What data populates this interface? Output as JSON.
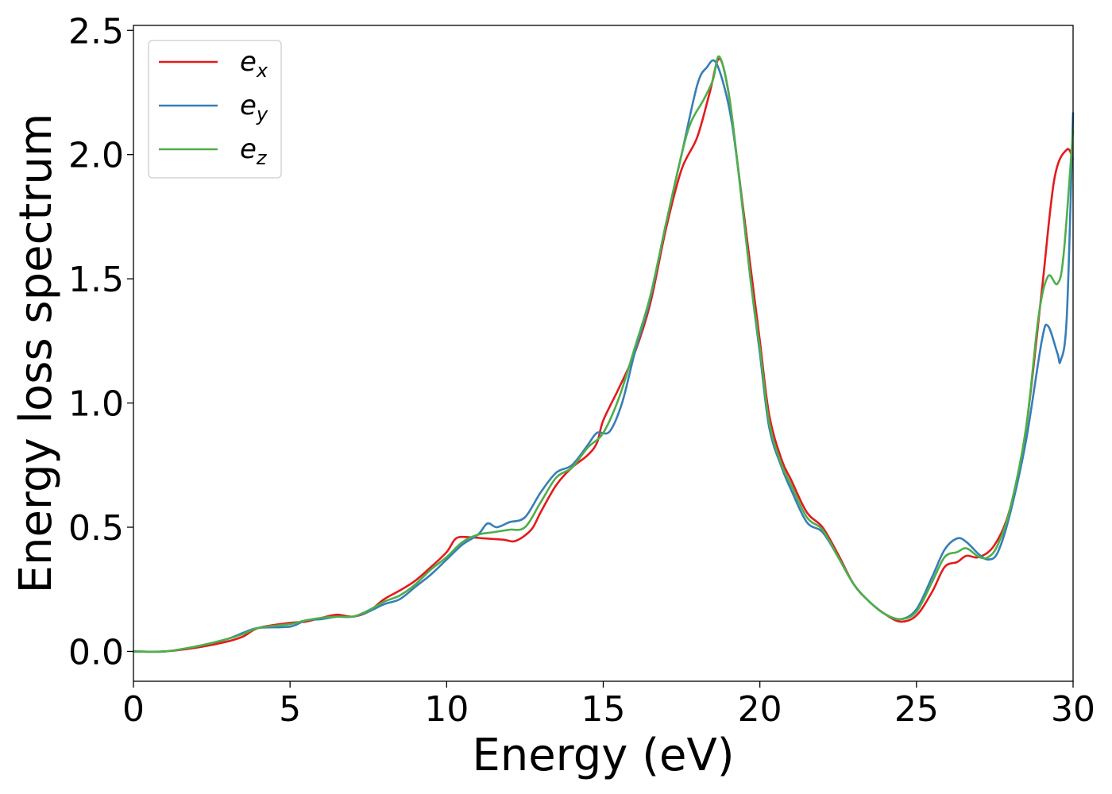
{
  "chart_data": {
    "type": "line",
    "title": "",
    "xlabel": "Energy (eV)",
    "ylabel": "Energy loss spectrum",
    "xlim": [
      0,
      30
    ],
    "ylim": [
      -0.12,
      2.52
    ],
    "xticks": [
      0,
      5,
      10,
      15,
      20,
      25,
      30
    ],
    "xtick_labels": [
      "0",
      "5",
      "10",
      "15",
      "20",
      "25",
      "30"
    ],
    "yticks": [
      0.0,
      0.5,
      1.0,
      1.5,
      2.0,
      2.5
    ],
    "ytick_labels": [
      "0.0",
      "0.5",
      "1.0",
      "1.5",
      "2.0",
      "2.5"
    ],
    "grid": false,
    "legend_position": "top-left",
    "series": [
      {
        "name": "e",
        "sub": "x",
        "color": "#e41a1c",
        "points": [
          [
            0,
            0
          ],
          [
            1,
            0.0
          ],
          [
            2,
            0.015
          ],
          [
            3,
            0.04
          ],
          [
            3.5,
            0.06
          ],
          [
            4,
            0.095
          ],
          [
            5,
            0.115
          ],
          [
            5.5,
            0.12
          ],
          [
            6,
            0.135
          ],
          [
            6.5,
            0.148
          ],
          [
            7,
            0.14
          ],
          [
            7.5,
            0.16
          ],
          [
            8,
            0.21
          ],
          [
            8.5,
            0.245
          ],
          [
            9,
            0.285
          ],
          [
            9.5,
            0.34
          ],
          [
            10,
            0.4
          ],
          [
            10.3,
            0.455
          ],
          [
            10.7,
            0.46
          ],
          [
            11.2,
            0.455
          ],
          [
            11.8,
            0.45
          ],
          [
            12.2,
            0.445
          ],
          [
            12.7,
            0.49
          ],
          [
            13,
            0.56
          ],
          [
            13.5,
            0.67
          ],
          [
            14,
            0.74
          ],
          [
            14.5,
            0.79
          ],
          [
            14.8,
            0.84
          ],
          [
            15,
            0.93
          ],
          [
            15.5,
            1.06
          ],
          [
            16,
            1.2
          ],
          [
            16.5,
            1.4
          ],
          [
            17,
            1.7
          ],
          [
            17.5,
            1.94
          ],
          [
            18,
            2.07
          ],
          [
            18.4,
            2.25
          ],
          [
            18.7,
            2.385
          ],
          [
            19,
            2.25
          ],
          [
            19.3,
            1.95
          ],
          [
            19.7,
            1.55
          ],
          [
            20,
            1.25
          ],
          [
            20.3,
            0.95
          ],
          [
            20.7,
            0.77
          ],
          [
            21,
            0.69
          ],
          [
            21.5,
            0.56
          ],
          [
            22,
            0.5
          ],
          [
            22.5,
            0.39
          ],
          [
            23,
            0.27
          ],
          [
            23.5,
            0.2
          ],
          [
            24,
            0.15
          ],
          [
            24.5,
            0.12
          ],
          [
            25,
            0.145
          ],
          [
            25.5,
            0.24
          ],
          [
            25.9,
            0.34
          ],
          [
            26.3,
            0.36
          ],
          [
            26.6,
            0.385
          ],
          [
            27,
            0.38
          ],
          [
            27.5,
            0.43
          ],
          [
            28,
            0.58
          ],
          [
            28.5,
            0.9
          ],
          [
            29,
            1.45
          ],
          [
            29.4,
            1.9
          ],
          [
            29.8,
            2.02
          ],
          [
            30,
            1.98
          ]
        ]
      },
      {
        "name": "e",
        "sub": "y",
        "color": "#377eb8",
        "points": [
          [
            0,
            0
          ],
          [
            1,
            0.0
          ],
          [
            2,
            0.02
          ],
          [
            3,
            0.05
          ],
          [
            3.5,
            0.075
          ],
          [
            4,
            0.095
          ],
          [
            5,
            0.1
          ],
          [
            5.5,
            0.125
          ],
          [
            6,
            0.13
          ],
          [
            6.5,
            0.14
          ],
          [
            7,
            0.14
          ],
          [
            7.5,
            0.16
          ],
          [
            8,
            0.19
          ],
          [
            8.5,
            0.21
          ],
          [
            9,
            0.26
          ],
          [
            9.5,
            0.31
          ],
          [
            10,
            0.37
          ],
          [
            10.5,
            0.43
          ],
          [
            11,
            0.47
          ],
          [
            11.3,
            0.515
          ],
          [
            11.6,
            0.5
          ],
          [
            12,
            0.52
          ],
          [
            12.5,
            0.54
          ],
          [
            13,
            0.64
          ],
          [
            13.5,
            0.72
          ],
          [
            14,
            0.75
          ],
          [
            14.5,
            0.83
          ],
          [
            14.8,
            0.88
          ],
          [
            15.2,
            0.885
          ],
          [
            15.6,
            1.0
          ],
          [
            16,
            1.2
          ],
          [
            16.5,
            1.42
          ],
          [
            17,
            1.72
          ],
          [
            17.5,
            2.0
          ],
          [
            18,
            2.28
          ],
          [
            18.3,
            2.35
          ],
          [
            18.6,
            2.37
          ],
          [
            19,
            2.2
          ],
          [
            19.3,
            1.95
          ],
          [
            19.7,
            1.5
          ],
          [
            20,
            1.2
          ],
          [
            20.3,
            0.9
          ],
          [
            20.7,
            0.74
          ],
          [
            21,
            0.65
          ],
          [
            21.5,
            0.52
          ],
          [
            22,
            0.48
          ],
          [
            22.5,
            0.38
          ],
          [
            23,
            0.27
          ],
          [
            23.5,
            0.2
          ],
          [
            24,
            0.15
          ],
          [
            24.5,
            0.13
          ],
          [
            25,
            0.17
          ],
          [
            25.5,
            0.3
          ],
          [
            25.9,
            0.41
          ],
          [
            26.3,
            0.455
          ],
          [
            26.6,
            0.44
          ],
          [
            27,
            0.39
          ],
          [
            27.3,
            0.37
          ],
          [
            27.6,
            0.4
          ],
          [
            28,
            0.56
          ],
          [
            28.5,
            0.85
          ],
          [
            29,
            1.25
          ],
          [
            29.2,
            1.31
          ],
          [
            29.5,
            1.2
          ],
          [
            29.6,
            1.17
          ],
          [
            29.8,
            1.35
          ],
          [
            30,
            2.17
          ]
        ]
      },
      {
        "name": "e",
        "sub": "z",
        "color": "#4daf4a",
        "points": [
          [
            0,
            0
          ],
          [
            1,
            0.0
          ],
          [
            2,
            0.02
          ],
          [
            3,
            0.05
          ],
          [
            3.5,
            0.07
          ],
          [
            4,
            0.095
          ],
          [
            5,
            0.11
          ],
          [
            5.5,
            0.125
          ],
          [
            6,
            0.135
          ],
          [
            6.5,
            0.14
          ],
          [
            7,
            0.14
          ],
          [
            7.5,
            0.165
          ],
          [
            8,
            0.2
          ],
          [
            8.5,
            0.225
          ],
          [
            9,
            0.27
          ],
          [
            9.5,
            0.33
          ],
          [
            10,
            0.38
          ],
          [
            10.5,
            0.44
          ],
          [
            11,
            0.47
          ],
          [
            11.5,
            0.48
          ],
          [
            12,
            0.49
          ],
          [
            12.5,
            0.5
          ],
          [
            13,
            0.6
          ],
          [
            13.5,
            0.7
          ],
          [
            14,
            0.74
          ],
          [
            14.5,
            0.82
          ],
          [
            15,
            0.88
          ],
          [
            15.5,
            1.02
          ],
          [
            16,
            1.22
          ],
          [
            16.5,
            1.43
          ],
          [
            17,
            1.72
          ],
          [
            17.5,
            2.0
          ],
          [
            17.8,
            2.13
          ],
          [
            18.2,
            2.22
          ],
          [
            18.5,
            2.3
          ],
          [
            18.7,
            2.395
          ],
          [
            19,
            2.25
          ],
          [
            19.3,
            1.95
          ],
          [
            19.7,
            1.5
          ],
          [
            20,
            1.22
          ],
          [
            20.3,
            0.92
          ],
          [
            20.7,
            0.75
          ],
          [
            21,
            0.67
          ],
          [
            21.5,
            0.54
          ],
          [
            22,
            0.49
          ],
          [
            22.5,
            0.38
          ],
          [
            23,
            0.27
          ],
          [
            23.5,
            0.2
          ],
          [
            24,
            0.15
          ],
          [
            24.5,
            0.13
          ],
          [
            25,
            0.16
          ],
          [
            25.5,
            0.28
          ],
          [
            25.9,
            0.38
          ],
          [
            26.3,
            0.4
          ],
          [
            26.6,
            0.415
          ],
          [
            27,
            0.38
          ],
          [
            27.3,
            0.38
          ],
          [
            27.6,
            0.43
          ],
          [
            28,
            0.58
          ],
          [
            28.5,
            0.9
          ],
          [
            28.9,
            1.35
          ],
          [
            29.2,
            1.51
          ],
          [
            29.5,
            1.48
          ],
          [
            29.7,
            1.6
          ],
          [
            30,
            2.1
          ]
        ]
      }
    ]
  }
}
